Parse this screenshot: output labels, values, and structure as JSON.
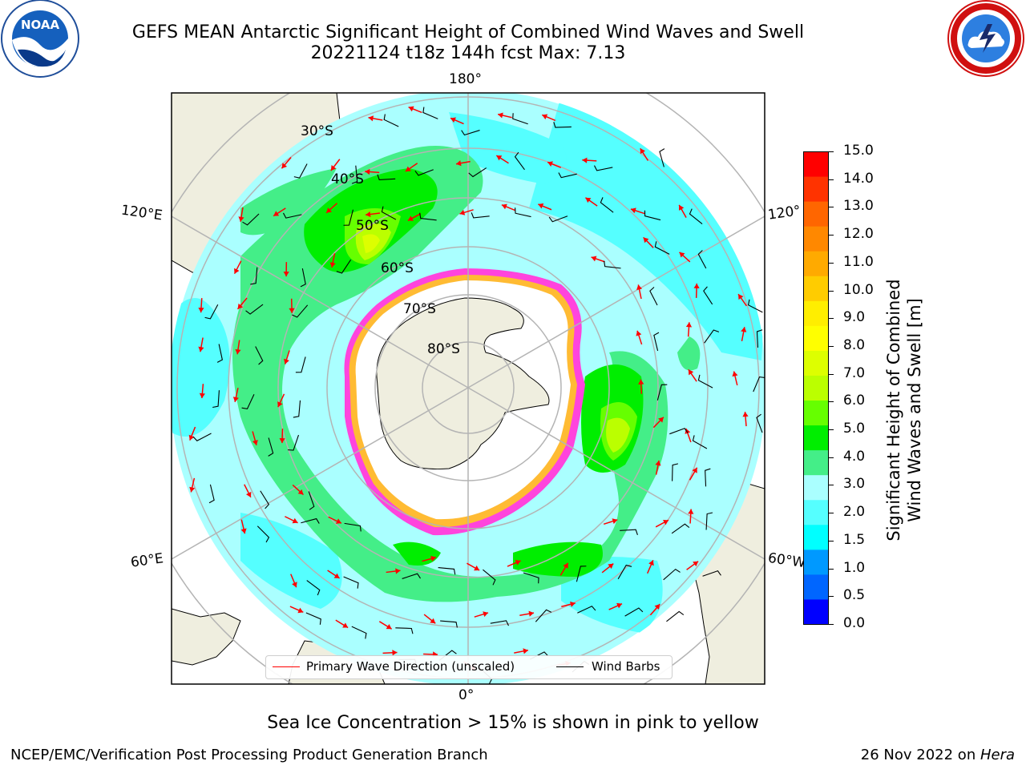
{
  "header": {
    "title_line1": "GEFS MEAN Antarctic Significant Height of Combined Wind Waves and Swell",
    "title_line2": "20221124 t18z 144h fcst   Max: 7.13"
  },
  "logos": {
    "left_text": "NOAA",
    "left_ring_text": "NATIONAL OCEANIC AND ATMOSPHERIC ADMINISTRATION · U.S. DEPARTMENT OF COMMERCE",
    "right_ring_text": "NATIONAL WEATHER SERVICE"
  },
  "map": {
    "longitude_labels": {
      "top": "180°",
      "bottom": "0°",
      "left_upper": "120°E",
      "left_lower": "60°E",
      "right_upper": "120°",
      "right_lower": "60°W"
    },
    "latitude_labels": [
      "30°S",
      "40°S",
      "50°S",
      "60°S",
      "70°S",
      "80°S"
    ],
    "legend": {
      "wave_dir_label": "Primary Wave Direction (unscaled)",
      "wind_barbs_label": "Wind Barbs",
      "wave_dir_color": "#ff0000",
      "wind_barb_color": "#000000"
    }
  },
  "colorbar": {
    "label": "Significant Height of Combined Wind Waves and Swell [m]",
    "label_line1": "Significant Height of Combined",
    "label_line2": "Wind Waves and Swell [m]",
    "ticks": [
      "15.0",
      "14.0",
      "13.0",
      "12.0",
      "11.0",
      "10.0",
      "9.0",
      "8.0",
      "7.0",
      "6.0",
      "5.0",
      "4.0",
      "3.0",
      "2.0",
      "1.5",
      "1.0",
      "0.5",
      "0.0"
    ],
    "colors_top_to_bottom": [
      "#ff0000",
      "#ff3300",
      "#ff6600",
      "#ff8800",
      "#ffaa00",
      "#ffcc00",
      "#ffee00",
      "#ffff00",
      "#ddff00",
      "#bbff00",
      "#66ff00",
      "#00ee00",
      "#44ee88",
      "#aaffff",
      "#55ffff",
      "#00ffff",
      "#0099ff",
      "#0066ff",
      "#0000ff"
    ]
  },
  "caption": "Sea Ice Concentration > 15% is shown in pink to yellow",
  "footer": {
    "left": "NCEP/EMC/Verification Post Processing Product Generation Branch",
    "right_date": "26 Nov 2022 on ",
    "right_machine": "Hera"
  },
  "colors": {
    "land": "#efeedf",
    "ice_white": "#ffffff",
    "ice_edge": "#ff44dd",
    "ice_yellow": "#ffbb33"
  }
}
